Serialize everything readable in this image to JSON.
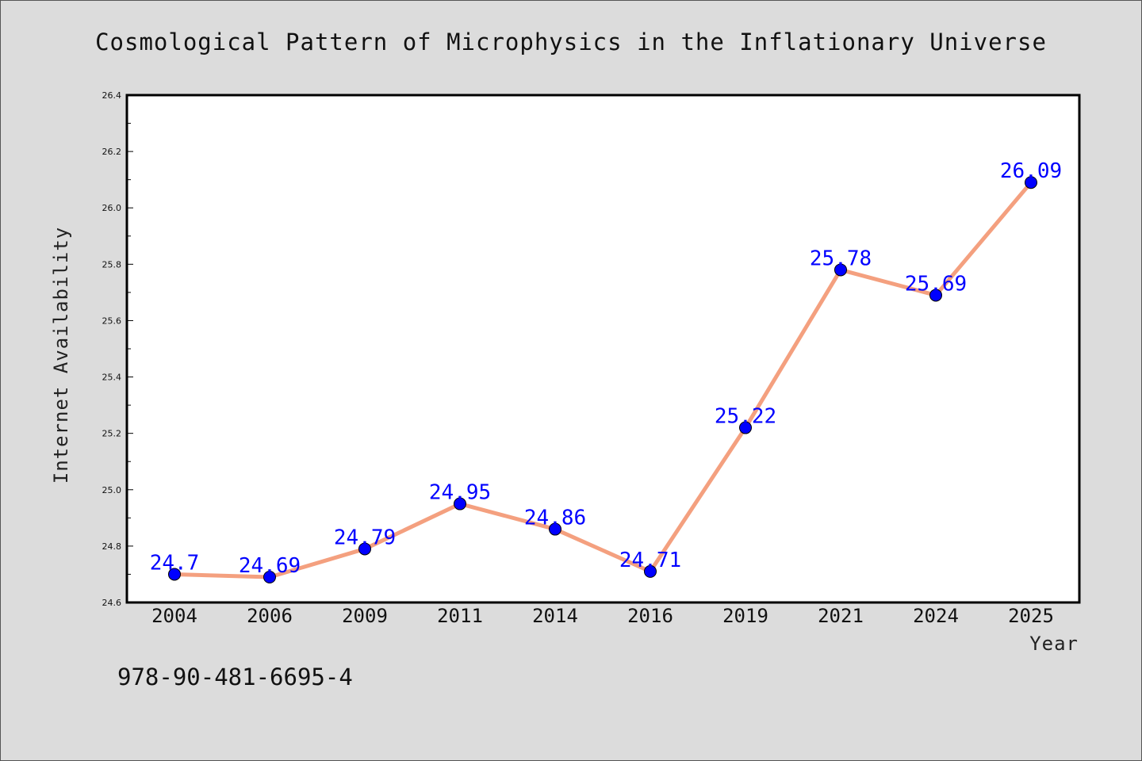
{
  "chart_data": {
    "type": "line",
    "title": "Cosmological Pattern of Microphysics in the Inflationary Universe",
    "xlabel": "Year",
    "ylabel": "Internet Availability",
    "categories": [
      "2004",
      "2006",
      "2009",
      "2011",
      "2014",
      "2016",
      "2019",
      "2021",
      "2024",
      "2025"
    ],
    "values": [
      24.7,
      24.69,
      24.79,
      24.95,
      24.86,
      24.71,
      25.22,
      25.78,
      25.69,
      26.09
    ],
    "data_labels": [
      "24.7",
      "24.69",
      "24.79",
      "24.95",
      "24.86",
      "24.71",
      "25.22",
      "25.78",
      "25.69",
      "26.09"
    ],
    "ylim": [
      24.6,
      26.4
    ],
    "yticks": [
      "24.6",
      "24.8",
      "25.0",
      "25.2",
      "25.4",
      "25.6",
      "25.8",
      "26.0",
      "26.2",
      "26.4"
    ],
    "grid": false,
    "line_color": "#f4a07f",
    "marker_color": "#0000ff",
    "label_color": "#0000ff"
  },
  "footer": {
    "isbn": "978-90-481-6695-4"
  }
}
